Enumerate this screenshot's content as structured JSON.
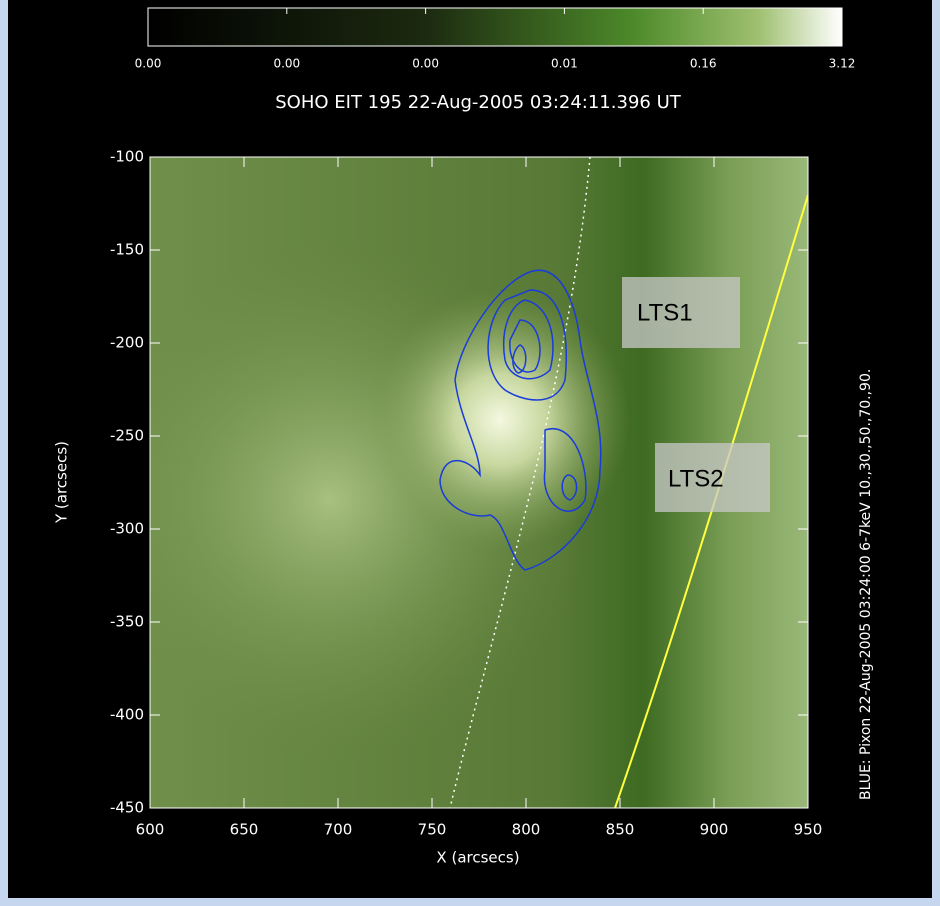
{
  "chart_data": {
    "type": "image",
    "title": "SOHO EIT 195 22-Aug-2005 03:24:11.396 UT",
    "x_label": "X (arcsecs)",
    "y_label": "Y (arcsecs)",
    "side_label": "BLUE:  Pixon 22-Aug-2005 03:24:00 6-7keV  10.,30.,50.,70.,90.",
    "colorbar_labels": [
      "0.00",
      "0.00",
      "0.00",
      "0.01",
      "0.16",
      "3.12"
    ],
    "xlim": [
      600,
      950
    ],
    "xticks": [
      600,
      650,
      700,
      750,
      800,
      850,
      900,
      950
    ],
    "ylim": [
      -450,
      -100
    ],
    "yticks": [
      -100,
      -150,
      -200,
      -250,
      -300,
      -350,
      -400,
      -450
    ],
    "annotations": [
      "LTS1",
      "LTS2"
    ]
  }
}
